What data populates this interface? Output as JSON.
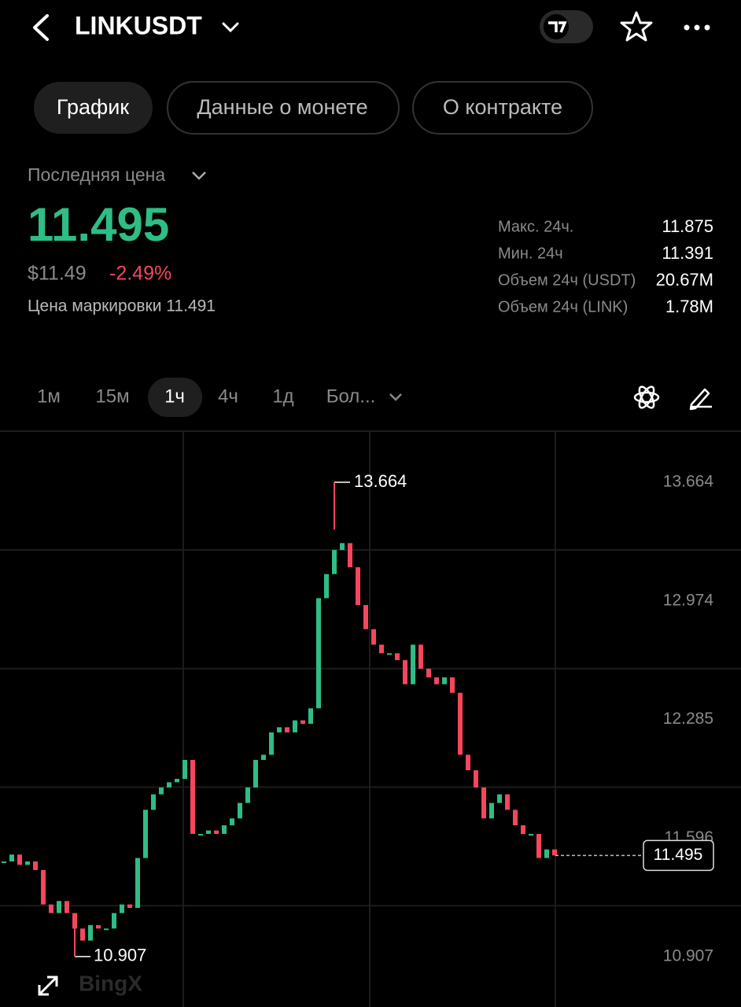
{
  "header": {
    "title": "LINKUSDT"
  },
  "tabs": [
    "График",
    "Данные о монете",
    "О контракте"
  ],
  "price": {
    "label": "Последняя цена",
    "last": "11.495",
    "usd": "$11.49",
    "change": "-2.49%",
    "mark": "Цена маркировки 11.491"
  },
  "stats": [
    [
      "Макс. 24ч.",
      "11.875"
    ],
    [
      "Мин. 24ч",
      "11.391"
    ],
    [
      "Объем 24ч (USDT)",
      "20.67M"
    ],
    [
      "Объем 24ч (LINK)",
      "1.78M"
    ]
  ],
  "intervals": [
    "1м",
    "15м",
    "1ч",
    "4ч",
    "1д",
    "Бол..."
  ],
  "watermark": "BingX",
  "chart_data": {
    "type": "candlestick",
    "values": [
      11.46,
      11.5,
      11.44,
      11.46,
      11.41,
      11.21,
      11.16,
      11.23,
      11.16,
      11.07,
      11.0,
      11.09,
      11.07,
      11.07,
      11.16,
      11.21,
      11.19,
      11.48,
      11.76,
      11.85,
      11.89,
      11.92,
      11.94,
      12.05,
      11.62,
      11.62,
      11.64,
      11.62,
      11.67,
      11.71,
      11.8,
      11.89,
      12.05,
      12.08,
      12.21,
      12.24,
      12.21,
      12.28,
      12.26,
      12.35,
      12.99,
      13.13,
      13.27,
      13.31,
      13.17,
      12.95,
      12.81,
      12.72,
      12.67,
      12.67,
      12.63,
      12.49,
      12.72,
      12.58,
      12.53,
      12.49,
      12.53,
      12.44,
      12.08,
      11.99,
      11.89,
      11.71,
      11.8,
      11.85,
      11.76,
      11.67,
      11.62,
      11.62,
      11.48,
      11.53,
      11.495
    ],
    "ylim": [
      10.614,
      13.961
    ],
    "yticks": [
      13.664,
      12.974,
      12.285,
      11.596,
      10.907
    ],
    "grid": true,
    "max": 13.664,
    "min": 10.907,
    "last": 11.495,
    "up_color": "#2ebd85",
    "down_color": "#f6465d"
  }
}
